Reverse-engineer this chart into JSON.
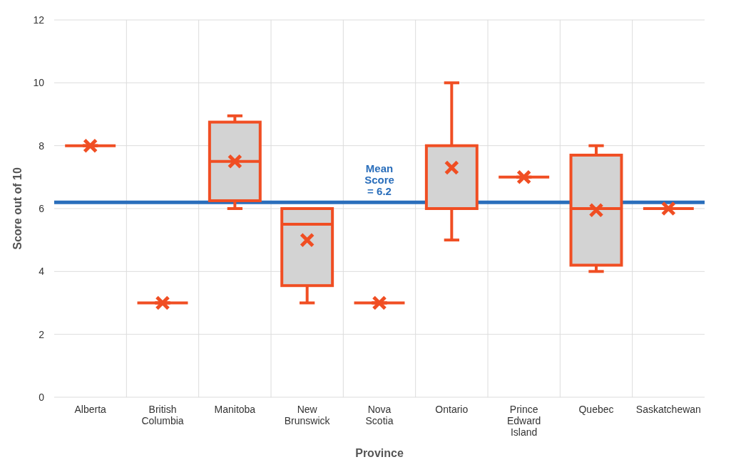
{
  "chart_data": {
    "type": "box",
    "xlabel": "Province",
    "ylabel": "Score out of 10",
    "categories": [
      "Alberta",
      "British Columbia",
      "Manitoba",
      "New Brunswick",
      "Nova Scotia",
      "Ontario",
      "Prince Edward Island",
      "Quebec",
      "Saskatchewan"
    ],
    "boxes": [
      {
        "low": 8,
        "q1": 8,
        "median": 8,
        "q3": 8,
        "high": 8,
        "mean": 8
      },
      {
        "low": 3,
        "q1": 3,
        "median": 3,
        "q3": 3,
        "high": 3,
        "mean": 3
      },
      {
        "low": 6,
        "q1": 6.25,
        "median": 7.5,
        "q3": 8.75,
        "high": 8.95,
        "mean": 7.5
      },
      {
        "low": 3,
        "q1": 3.55,
        "median": 5.5,
        "q3": 6,
        "high": 6,
        "mean": 5
      },
      {
        "low": 3,
        "q1": 3,
        "median": 3,
        "q3": 3,
        "high": 3,
        "mean": 3
      },
      {
        "low": 5,
        "q1": 6,
        "median": 6,
        "q3": 8,
        "high": 10,
        "mean": 7.3
      },
      {
        "low": 7,
        "q1": 7,
        "median": 7,
        "q3": 7,
        "high": 7,
        "mean": 7
      },
      {
        "low": 4,
        "q1": 4.2,
        "median": 6,
        "q3": 7.7,
        "high": 8,
        "mean": 5.95
      },
      {
        "low": 6,
        "q1": 6,
        "median": 6,
        "q3": 6,
        "high": 6,
        "mean": 6
      }
    ],
    "color": "#f04e23",
    "ylim": [
      0,
      12
    ],
    "yticks": [
      0,
      2,
      4,
      6,
      8,
      10,
      12
    ],
    "grid": true,
    "ref_lines": [
      {
        "axis": "y",
        "value": 6.2,
        "label": "Mean Score = 6.2",
        "color": "#2a6ebb"
      }
    ]
  }
}
